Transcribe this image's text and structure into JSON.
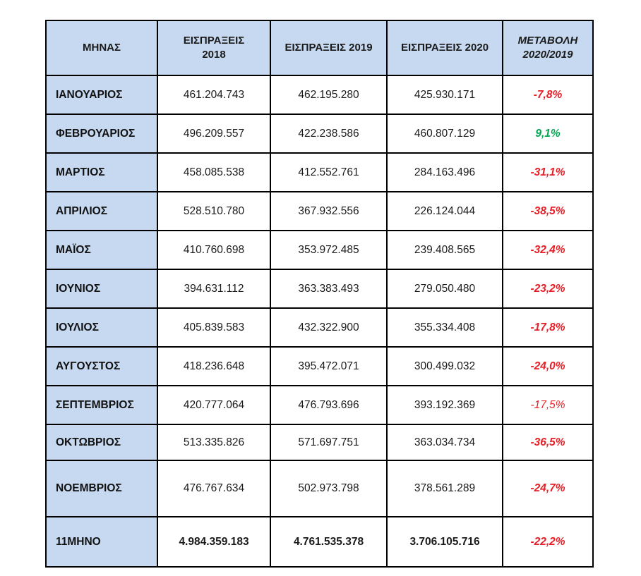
{
  "colors": {
    "header_bg": "#c6d9f1",
    "border": "#000000",
    "negative": "#e81e26",
    "positive": "#00a651"
  },
  "table": {
    "columns": [
      {
        "label": "ΜΗΝΑΣ"
      },
      {
        "label": "ΕΙΣΠΡΑΞΕΙΣ\n2018"
      },
      {
        "label": "ΕΙΣΠΡΑΞΕΙΣ 2019"
      },
      {
        "label": "ΕΙΣΠΡΑΞΕΙΣ 2020"
      },
      {
        "label": "ΜΕΤΑΒΟΛΗ\n2020/2019"
      }
    ],
    "rows": [
      {
        "month": "ΙΑΝΟΥΑΡΙΟΣ",
        "y2018": "461.204.743",
        "y2019": "462.195.280",
        "y2020": "425.930.171",
        "change": "-7,8%",
        "trend": "negative",
        "emphasis": "bold",
        "is_total": false
      },
      {
        "month": "ΦΕΒΡΟΥΑΡΙΟΣ",
        "y2018": "496.209.557",
        "y2019": "422.238.586",
        "y2020": "460.807.129",
        "change": "9,1%",
        "trend": "positive",
        "emphasis": "bold",
        "is_total": false
      },
      {
        "month": "ΜΑΡΤΙΟΣ",
        "y2018": "458.085.538",
        "y2019": "412.552.761",
        "y2020": "284.163.496",
        "change": "-31,1%",
        "trend": "negative",
        "emphasis": "bold",
        "is_total": false
      },
      {
        "month": "ΑΠΡΙΛΙΟΣ",
        "y2018": "528.510.780",
        "y2019": "367.932.556",
        "y2020": "226.124.044",
        "change": "-38,5%",
        "trend": "negative",
        "emphasis": "bold",
        "is_total": false
      },
      {
        "month": "ΜΑΪΟΣ",
        "y2018": "410.760.698",
        "y2019": "353.972.485",
        "y2020": "239.408.565",
        "change": "-32,4%",
        "trend": "negative",
        "emphasis": "bold",
        "is_total": false
      },
      {
        "month": "ΙΟΥΝΙΟΣ",
        "y2018": "394.631.112",
        "y2019": "363.383.493",
        "y2020": "279.050.480",
        "change": "-23,2%",
        "trend": "negative",
        "emphasis": "bold",
        "is_total": false
      },
      {
        "month": "ΙΟΥΛΙΟΣ",
        "y2018": "405.839.583",
        "y2019": "432.322.900",
        "y2020": "355.334.408",
        "change": "-17,8%",
        "trend": "negative",
        "emphasis": "bold",
        "is_total": false
      },
      {
        "month": "ΑΥΓΟΥΣΤΟΣ",
        "y2018": "418.236.648",
        "y2019": "395.472.071",
        "y2020": "300.499.032",
        "change": "-24,0%",
        "trend": "negative",
        "emphasis": "bold",
        "is_total": false
      },
      {
        "month": "ΣΕΠΤΕΜΒΡΙΟΣ",
        "y2018": "420.777.064",
        "y2019": "476.793.696",
        "y2020": "393.192.369",
        "change": "-17,5%",
        "trend": "negative",
        "emphasis": "regular",
        "is_total": false
      },
      {
        "month": "ΟΚΤΩΒΡΙΟΣ",
        "y2018": "513.335.826",
        "y2019": "571.697.751",
        "y2020": "363.034.734",
        "change": "-36,5%",
        "trend": "negative",
        "emphasis": "bold",
        "is_total": false
      },
      {
        "month": "ΝΟΕΜΒΡΙΟΣ",
        "y2018": "476.767.634",
        "y2019": "502.973.798",
        "y2020": "378.561.289",
        "change": "-24,7%",
        "trend": "negative",
        "emphasis": "bold",
        "is_total": false
      },
      {
        "month": "11ΜΗΝΟ",
        "y2018": "4.984.359.183",
        "y2019": "4.761.535.378",
        "y2020": "3.706.105.716",
        "change": "-22,2%",
        "trend": "negative",
        "emphasis": "bold",
        "is_total": true
      }
    ]
  },
  "chart_data": {
    "type": "table",
    "title": "",
    "columns": [
      "ΜΗΝΑΣ",
      "ΕΙΣΠΡΑΞΕΙΣ 2018",
      "ΕΙΣΠΡΑΞΕΙΣ 2019",
      "ΕΙΣΠΡΑΞΕΙΣ 2020",
      "ΜΕΤΑΒΟΛΗ 2020/2019"
    ],
    "categories": [
      "ΙΑΝΟΥΑΡΙΟΣ",
      "ΦΕΒΡΟΥΑΡΙΟΣ",
      "ΜΑΡΤΙΟΣ",
      "ΑΠΡΙΛΙΟΣ",
      "ΜΑΪΟΣ",
      "ΙΟΥΝΙΟΣ",
      "ΙΟΥΛΙΟΣ",
      "ΑΥΓΟΥΣΤΟΣ",
      "ΣΕΠΤΕΜΒΡΙΟΣ",
      "ΟΚΤΩΒΡΙΟΣ",
      "ΝΟΕΜΒΡΙΟΣ"
    ],
    "series": [
      {
        "name": "ΕΙΣΠΡΑΞΕΙΣ 2018",
        "values": [
          461204743,
          496209557,
          458085538,
          528510780,
          410760698,
          394631112,
          405839583,
          418236648,
          420777064,
          513335826,
          476767634
        ]
      },
      {
        "name": "ΕΙΣΠΡΑΞΕΙΣ 2019",
        "values": [
          462195280,
          422238586,
          412552761,
          367932556,
          353972485,
          363383493,
          432322900,
          395472071,
          476793696,
          571697751,
          502973798
        ]
      },
      {
        "name": "ΕΙΣΠΡΑΞΕΙΣ 2020",
        "values": [
          425930171,
          460807129,
          284163496,
          226124044,
          239408565,
          279050480,
          355334408,
          300499032,
          393192369,
          363034734,
          378561289
        ]
      },
      {
        "name": "ΜΕΤΑΒΟΛΗ 2020/2019 (%)",
        "values": [
          -7.8,
          9.1,
          -31.1,
          -38.5,
          -32.4,
          -23.2,
          -17.8,
          -24.0,
          -17.5,
          -36.5,
          -24.7
        ]
      }
    ],
    "totals": {
      "label": "11ΜΗΝΟ",
      "y2018": 4984359183,
      "y2019": 4761535378,
      "y2020": 3706105716,
      "change_pct": -22.2
    }
  }
}
